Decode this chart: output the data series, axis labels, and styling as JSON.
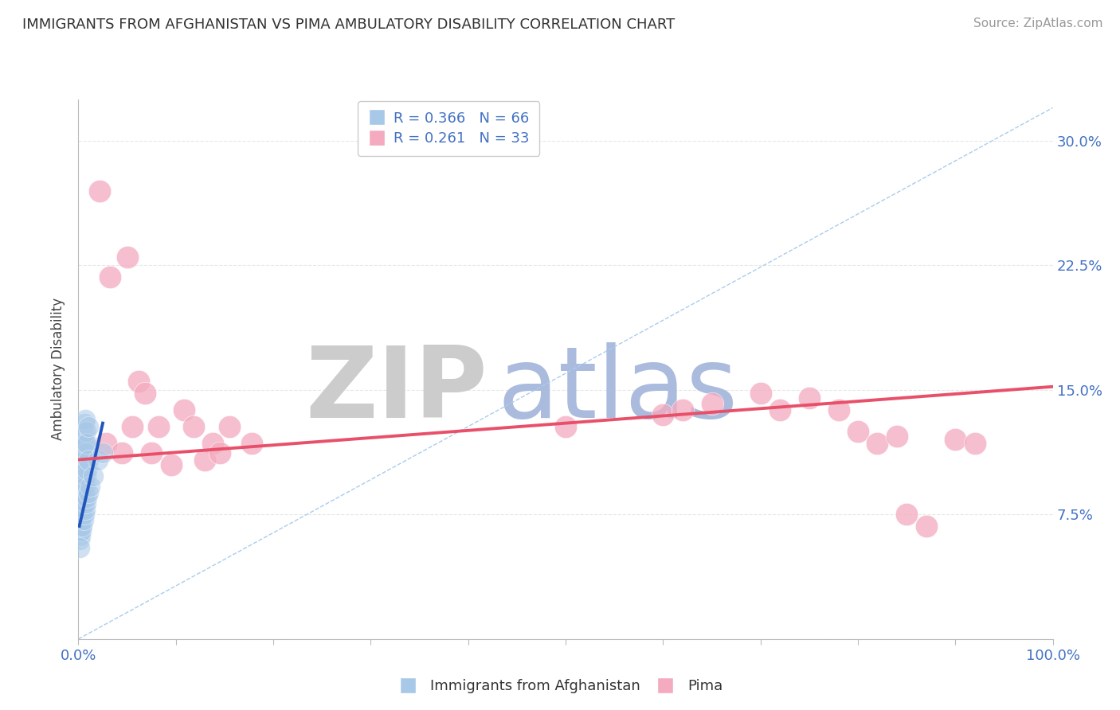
{
  "title": "IMMIGRANTS FROM AFGHANISTAN VS PIMA AMBULATORY DISABILITY CORRELATION CHART",
  "source": "Source: ZipAtlas.com",
  "ylabel": "Ambulatory Disability",
  "legend_blue_r": "R = 0.366",
  "legend_blue_n": "N = 66",
  "legend_pink_r": "R = 0.261",
  "legend_pink_n": "N = 33",
  "legend_label_blue": "Immigrants from Afghanistan",
  "legend_label_pink": "Pima",
  "xlim": [
    0,
    1.0
  ],
  "ylim": [
    0,
    0.325
  ],
  "x_ticks": [
    0.0,
    0.1,
    0.2,
    0.3,
    0.4,
    0.5,
    0.6,
    0.7,
    0.8,
    0.9,
    1.0
  ],
  "x_tick_labels": [
    "0.0%",
    "",
    "",
    "",
    "",
    "",
    "",
    "",
    "",
    "",
    "100.0%"
  ],
  "y_ticks": [
    0.0,
    0.075,
    0.15,
    0.225,
    0.3
  ],
  "y_tick_labels": [
    "",
    "7.5%",
    "15.0%",
    "22.5%",
    "30.0%"
  ],
  "blue_color": "#a8c8e8",
  "pink_color": "#f4aabf",
  "blue_line_color": "#2255bb",
  "pink_line_color": "#e8506a",
  "diag_line_color": "#aaccee",
  "grid_color": "#e8e8e8",
  "watermark_zip": "ZIP",
  "watermark_atlas": "atlas",
  "watermark_color_zip": "#cccccc",
  "watermark_color_atlas": "#aabbdd",
  "blue_dots": [
    [
      0.001,
      0.06
    ],
    [
      0.001,
      0.065
    ],
    [
      0.001,
      0.068
    ],
    [
      0.001,
      0.07
    ],
    [
      0.001,
      0.072
    ],
    [
      0.001,
      0.075
    ],
    [
      0.001,
      0.078
    ],
    [
      0.001,
      0.08
    ],
    [
      0.001,
      0.082
    ],
    [
      0.001,
      0.085
    ],
    [
      0.001,
      0.088
    ],
    [
      0.001,
      0.09
    ],
    [
      0.001,
      0.092
    ],
    [
      0.001,
      0.095
    ],
    [
      0.001,
      0.098
    ],
    [
      0.001,
      0.1
    ],
    [
      0.002,
      0.062
    ],
    [
      0.002,
      0.072
    ],
    [
      0.002,
      0.082
    ],
    [
      0.002,
      0.092
    ],
    [
      0.002,
      0.102
    ],
    [
      0.002,
      0.112
    ],
    [
      0.003,
      0.065
    ],
    [
      0.003,
      0.075
    ],
    [
      0.003,
      0.085
    ],
    [
      0.003,
      0.095
    ],
    [
      0.003,
      0.105
    ],
    [
      0.003,
      0.115
    ],
    [
      0.004,
      0.068
    ],
    [
      0.004,
      0.078
    ],
    [
      0.004,
      0.088
    ],
    [
      0.004,
      0.098
    ],
    [
      0.004,
      0.108
    ],
    [
      0.004,
      0.118
    ],
    [
      0.005,
      0.072
    ],
    [
      0.005,
      0.082
    ],
    [
      0.005,
      0.092
    ],
    [
      0.005,
      0.102
    ],
    [
      0.005,
      0.112
    ],
    [
      0.005,
      0.125
    ],
    [
      0.006,
      0.075
    ],
    [
      0.006,
      0.085
    ],
    [
      0.006,
      0.095
    ],
    [
      0.006,
      0.108
    ],
    [
      0.006,
      0.118
    ],
    [
      0.006,
      0.13
    ],
    [
      0.007,
      0.078
    ],
    [
      0.007,
      0.092
    ],
    [
      0.007,
      0.105
    ],
    [
      0.007,
      0.118
    ],
    [
      0.007,
      0.132
    ],
    [
      0.008,
      0.082
    ],
    [
      0.008,
      0.098
    ],
    [
      0.008,
      0.112
    ],
    [
      0.008,
      0.125
    ],
    [
      0.009,
      0.085
    ],
    [
      0.009,
      0.102
    ],
    [
      0.009,
      0.118
    ],
    [
      0.01,
      0.088
    ],
    [
      0.01,
      0.108
    ],
    [
      0.01,
      0.128
    ],
    [
      0.012,
      0.092
    ],
    [
      0.015,
      0.098
    ],
    [
      0.02,
      0.108
    ],
    [
      0.025,
      0.112
    ],
    [
      0.001,
      0.055
    ]
  ],
  "pink_dots": [
    [
      0.022,
      0.27
    ],
    [
      0.032,
      0.218
    ],
    [
      0.05,
      0.23
    ],
    [
      0.062,
      0.155
    ],
    [
      0.068,
      0.148
    ],
    [
      0.082,
      0.128
    ],
    [
      0.108,
      0.138
    ],
    [
      0.118,
      0.128
    ],
    [
      0.138,
      0.118
    ],
    [
      0.155,
      0.128
    ],
    [
      0.178,
      0.118
    ],
    [
      0.028,
      0.118
    ],
    [
      0.045,
      0.112
    ],
    [
      0.055,
      0.128
    ],
    [
      0.075,
      0.112
    ],
    [
      0.095,
      0.105
    ],
    [
      0.13,
      0.108
    ],
    [
      0.145,
      0.112
    ],
    [
      0.5,
      0.128
    ],
    [
      0.6,
      0.135
    ],
    [
      0.62,
      0.138
    ],
    [
      0.65,
      0.142
    ],
    [
      0.7,
      0.148
    ],
    [
      0.72,
      0.138
    ],
    [
      0.75,
      0.145
    ],
    [
      0.78,
      0.138
    ],
    [
      0.8,
      0.125
    ],
    [
      0.82,
      0.118
    ],
    [
      0.84,
      0.122
    ],
    [
      0.85,
      0.075
    ],
    [
      0.87,
      0.068
    ],
    [
      0.9,
      0.12
    ],
    [
      0.92,
      0.118
    ]
  ],
  "blue_line_x": [
    0.001,
    0.025
  ],
  "blue_line_y": [
    0.068,
    0.13
  ],
  "pink_line_x": [
    0.0,
    1.0
  ],
  "pink_line_y": [
    0.108,
    0.152
  ],
  "diag_line_x": [
    0.0,
    1.0
  ],
  "diag_line_y": [
    0.0,
    0.32
  ],
  "bg_color": "#ffffff"
}
